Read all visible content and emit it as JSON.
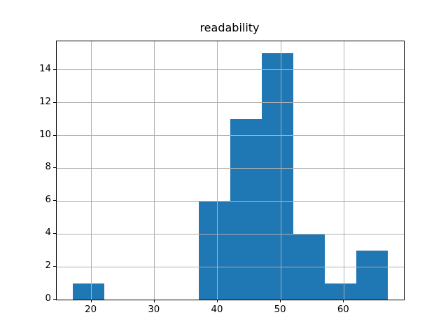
{
  "chart_data": {
    "type": "bar",
    "chart_style": "histogram",
    "title": "readability",
    "bin_edges": [
      17,
      22,
      27,
      32,
      37,
      42,
      47,
      52,
      57,
      62,
      67
    ],
    "counts": [
      1,
      0,
      0,
      0,
      6,
      11,
      15,
      4,
      1,
      3
    ],
    "xlabel": "",
    "ylabel": "",
    "xlim": [
      14.5,
      69.5
    ],
    "ylim": [
      0,
      15.75
    ],
    "xticks": [
      20,
      30,
      40,
      50,
      60
    ],
    "yticks": [
      0,
      2,
      4,
      6,
      8,
      10,
      12,
      14
    ],
    "grid": true,
    "grid_over_bars": true,
    "legend": false,
    "bar_color": "#1f77b4",
    "grid_color": "#b0b0b0",
    "axis_color": "#000000",
    "text_color": "#000000",
    "background_color": "#ffffff"
  }
}
